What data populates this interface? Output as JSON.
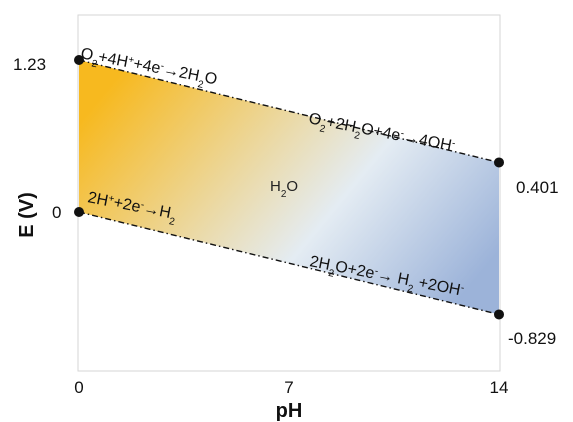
{
  "chart_data": {
    "type": "line",
    "xlabel": "pH",
    "ylabel": "E (V)",
    "x_ticks": [
      "0",
      "7",
      "14"
    ],
    "xlim": [
      0,
      14
    ],
    "grid": false,
    "series": [
      {
        "x": [
          0,
          14
        ],
        "y": [
          1.23,
          0.401
        ]
      },
      {
        "x": [
          0,
          14
        ],
        "y": [
          0,
          -0.829
        ]
      }
    ],
    "point_labels": {
      "upper_left": "1.23",
      "lower_left": "0",
      "upper_right": "0.401",
      "lower_right": "-0.829"
    },
    "region_label": {
      "base": "H",
      "sub": "2",
      "rest": "O"
    },
    "annotations": [
      {
        "id": "o2-acidic",
        "parts": [
          {
            "t": "O"
          },
          {
            "t": "2",
            "s": "sub"
          },
          {
            "t": "+4H"
          },
          {
            "t": "+",
            "s": "sup"
          },
          {
            "t": "+4e"
          },
          {
            "t": "-",
            "s": "sup"
          },
          {
            "t": "→2H"
          },
          {
            "t": "2",
            "s": "sub"
          },
          {
            "t": "O"
          }
        ]
      },
      {
        "id": "o2-basic",
        "parts": [
          {
            "t": "O"
          },
          {
            "t": "2",
            "s": "sub"
          },
          {
            "t": "+2H"
          },
          {
            "t": "2",
            "s": "sub"
          },
          {
            "t": "O+4e"
          },
          {
            "t": "-",
            "s": "sup"
          },
          {
            "t": "→4OH"
          },
          {
            "t": "-",
            "s": "sup"
          }
        ]
      },
      {
        "id": "h2-acidic",
        "parts": [
          {
            "t": "2H"
          },
          {
            "t": "+",
            "s": "sup"
          },
          {
            "t": "+2e"
          },
          {
            "t": "-",
            "s": "sup"
          },
          {
            "t": "→H"
          },
          {
            "t": "2",
            "s": "sub"
          }
        ]
      },
      {
        "id": "h2-basic",
        "parts": [
          {
            "t": "2H"
          },
          {
            "t": "2",
            "s": "sub"
          },
          {
            "t": "O+2e"
          },
          {
            "t": "-",
            "s": "sup"
          },
          {
            "t": "→ H"
          },
          {
            "t": "2",
            "s": "sub"
          },
          {
            "t": " +2OH"
          },
          {
            "t": "-",
            "s": "sup"
          }
        ]
      }
    ],
    "colors": {
      "acid": "#f7b91f",
      "mid": "#e4ecf3",
      "base": "#9cb3d9",
      "line": "#111111"
    }
  }
}
